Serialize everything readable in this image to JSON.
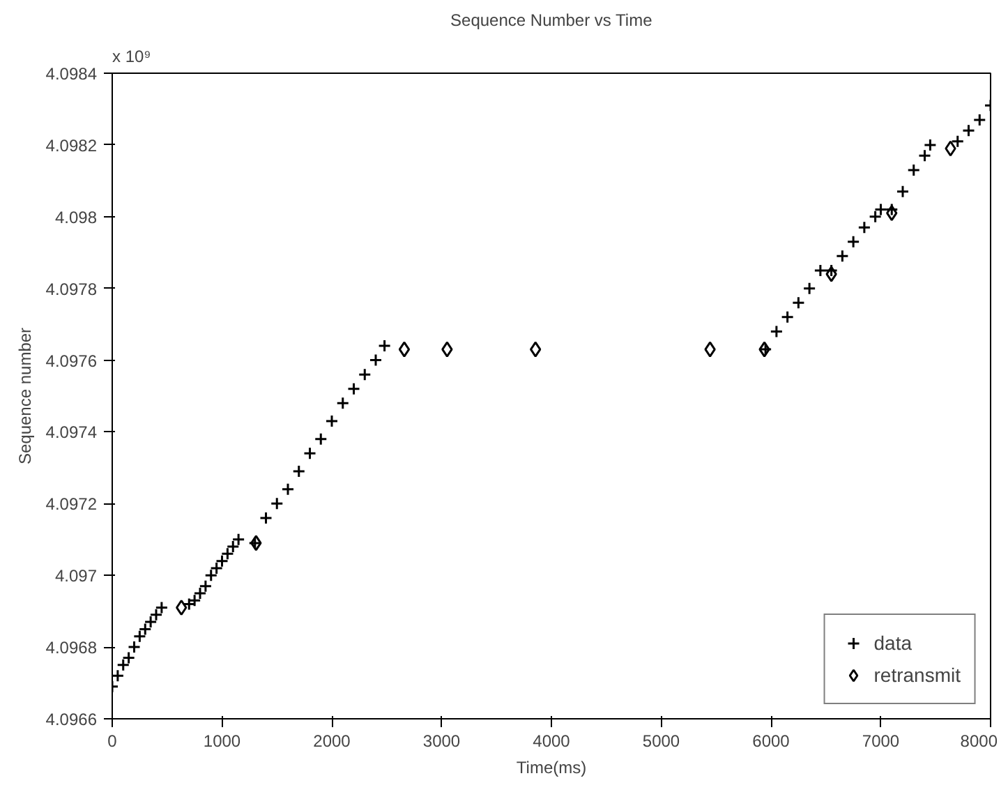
{
  "chart_data": {
    "type": "scatter",
    "title": "Sequence Number vs Time",
    "xlabel": "Time(ms)",
    "ylabel": "Sequence number",
    "annotations": [
      "x 10⁹"
    ],
    "xlim": [
      0,
      8000
    ],
    "xticks": [
      0,
      1000,
      2000,
      3000,
      4000,
      5000,
      6000,
      7000,
      8000
    ],
    "ylim": [
      4.0966,
      4.0984
    ],
    "yticks": [
      4.0966,
      4.0968,
      4.097,
      4.0972,
      4.0974,
      4.0976,
      4.0978,
      4.098,
      4.0982,
      4.0984
    ],
    "grid": false,
    "legend": "bottom right",
    "series": [
      {
        "name": "data",
        "color": "#000000",
        "marker": "cross",
        "x": [
          0,
          50,
          100,
          150,
          200,
          250,
          300,
          350,
          400,
          450,
          700,
          750,
          800,
          850,
          900,
          950,
          1000,
          1050,
          1100,
          1150,
          1300,
          1400,
          1500,
          1600,
          1700,
          1800,
          1900,
          2000,
          2100,
          2200,
          2300,
          2400,
          2480,
          5950,
          6050,
          6150,
          6250,
          6350,
          6450,
          6550,
          6650,
          6750,
          6850,
          6950,
          7000,
          7100,
          7200,
          7300,
          7400,
          7450,
          7700,
          7800,
          7900,
          8000
        ],
        "values": [
          4.09669,
          4.09672,
          4.09675,
          4.09677,
          4.0968,
          4.09683,
          4.09685,
          4.09687,
          4.09689,
          4.09691,
          4.09692,
          4.09693,
          4.09695,
          4.09697,
          4.097,
          4.09702,
          4.09704,
          4.09706,
          4.09708,
          4.0971,
          4.09709,
          4.09716,
          4.0972,
          4.09724,
          4.09729,
          4.09734,
          4.09738,
          4.09743,
          4.09748,
          4.09752,
          4.09756,
          4.0976,
          4.09764,
          4.09763,
          4.09768,
          4.09772,
          4.09776,
          4.0978,
          4.09785,
          4.09785,
          4.09789,
          4.09793,
          4.09797,
          4.098,
          4.09802,
          4.09802,
          4.09807,
          4.09813,
          4.09817,
          4.0982,
          4.09821,
          4.09824,
          4.09827,
          4.09831
        ]
      },
      {
        "name": "retransmit",
        "color": "#000000",
        "marker": "diamond",
        "x": [
          630,
          1310,
          2660,
          3050,
          3855,
          5445,
          5940,
          6550,
          7100,
          7635
        ],
        "values": [
          4.09691,
          4.09709,
          4.09763,
          4.09763,
          4.09763,
          4.09763,
          4.09763,
          4.09784,
          4.09801,
          4.09819
        ]
      }
    ]
  }
}
